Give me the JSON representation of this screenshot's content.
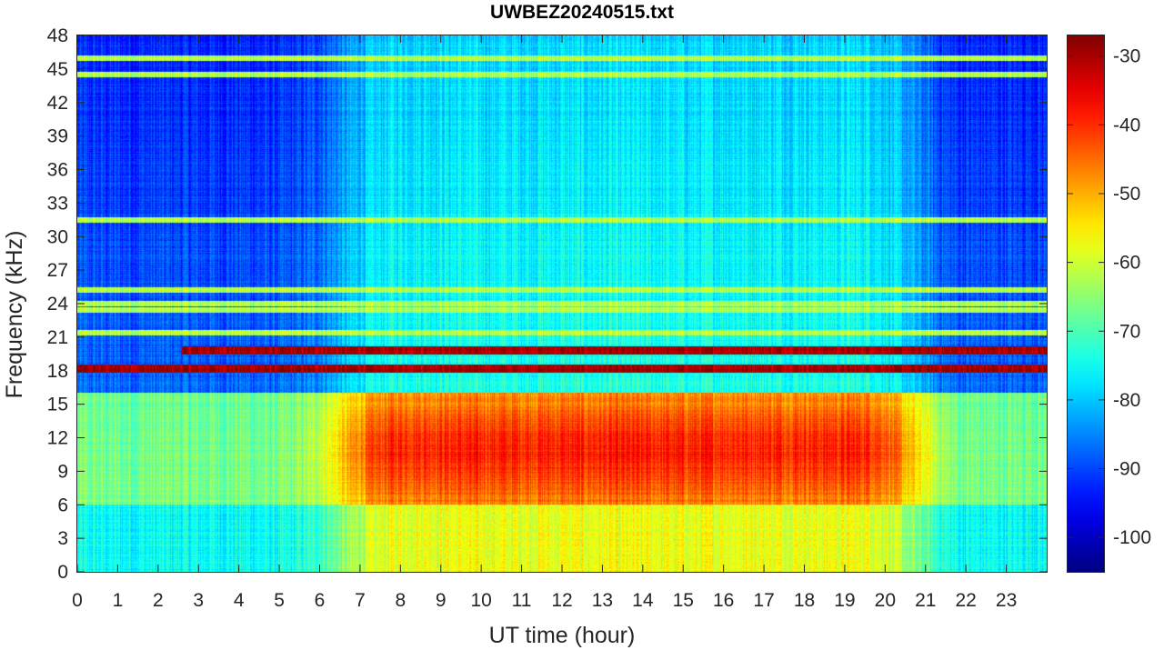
{
  "chart_data": {
    "type": "heatmap",
    "title": "UWBEZ20240515.txt",
    "xlabel": "UT time (hour)",
    "ylabel": "Frequency (kHz)",
    "xlim": [
      0,
      24
    ],
    "ylim": [
      0,
      48
    ],
    "x_ticks": [
      0,
      1,
      2,
      3,
      4,
      5,
      6,
      7,
      8,
      9,
      10,
      11,
      12,
      13,
      14,
      15,
      16,
      17,
      18,
      19,
      20,
      21,
      22,
      23
    ],
    "y_ticks": [
      0,
      3,
      6,
      9,
      12,
      15,
      18,
      21,
      24,
      27,
      30,
      33,
      36,
      39,
      42,
      45,
      48
    ],
    "colorbar": {
      "range": [
        -105,
        -27
      ],
      "ticks": [
        -100,
        -90,
        -80,
        -70,
        -60,
        -50,
        -40,
        -30
      ],
      "colormap": "jet"
    },
    "features": {
      "strong_narrowband_lines_khz": [
        19.8,
        18.2
      ],
      "narrowband_lines_khz": [
        21.4,
        23.4,
        24.0,
        25.2,
        31.5,
        44.5,
        46.0
      ],
      "daytime_enhancement_hours": [
        6.5,
        20.5
      ],
      "daytime_enhancement_band_khz": [
        6,
        16
      ],
      "peak_level_db": -30,
      "background_level_db": -85
    }
  }
}
